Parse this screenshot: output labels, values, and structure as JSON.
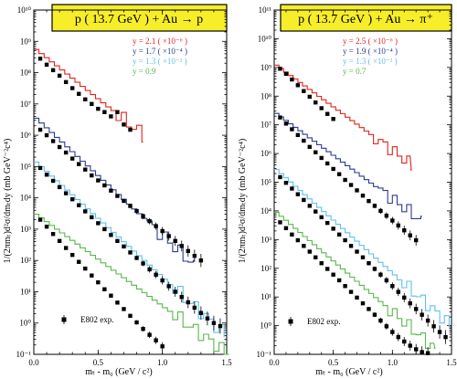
{
  "chart_data": [
    {
      "type": "scatter",
      "title": "p ( 13.7 GeV ) + Au → p",
      "xlabel": "mₜ - m₀ (GeV / c²)",
      "ylabel": "1/(2πmₜ)d²σ/dmₜdy (mb GeV⁻²c⁴)",
      "xlim": [
        0.0,
        1.5
      ],
      "ylim": [
        0.1,
        10000000000
      ],
      "ylog": true,
      "xticks": [
        "0.0",
        "0.5",
        "1.0",
        "1.5"
      ],
      "yticks": [
        "10⁻¹",
        "10⁰",
        "10¹",
        "10²",
        "10³",
        "10⁴",
        "10⁵",
        "10⁶",
        "10⁷",
        "10⁸",
        "10⁹",
        "10¹⁰"
      ],
      "marker_legend": "E802 exp.",
      "series": [
        {
          "name": "y = 2.1 ( ×10⁻⁶ )",
          "color": "#e0241c",
          "x": [
            0.05,
            0.1,
            0.15,
            0.2,
            0.25,
            0.3,
            0.35,
            0.4,
            0.45,
            0.5,
            0.55,
            0.6,
            0.65,
            0.7,
            0.75
          ],
          "y": [
            280000000,
            180000000,
            120000000,
            80000000,
            50000000,
            32000000,
            21000000,
            14000000,
            10000000,
            7000000,
            5500000,
            4000000,
            5500000,
            2200000,
            1500000
          ],
          "model_x": [
            0.0,
            0.85
          ],
          "model_y": [
            550000000,
            900000
          ]
        },
        {
          "name": "y = 1.7 ( ×10⁻⁴ )",
          "color": "#2a3b8f",
          "x": [
            0.05,
            0.1,
            0.15,
            0.2,
            0.25,
            0.3,
            0.35,
            0.4,
            0.45,
            0.5,
            0.55,
            0.6,
            0.65,
            0.7,
            0.75,
            0.8,
            0.85,
            0.9,
            0.95,
            1.0,
            1.05,
            1.1,
            1.15,
            1.2,
            1.25,
            1.3
          ],
          "y": [
            1500000,
            1000000,
            650000,
            420000,
            280000,
            180000,
            120000,
            80000,
            52000,
            36000,
            25000,
            17000,
            11500,
            8000,
            5500,
            3800,
            2600,
            1800,
            1250,
            870,
            600,
            420,
            290,
            200,
            140,
            100
          ],
          "model_x": [
            0.0,
            1.25
          ],
          "model_y": [
            3500000,
            60
          ]
        },
        {
          "name": "y = 1.3 ( ×10⁻² )",
          "color": "#5fc0ea",
          "x": [
            0.05,
            0.1,
            0.15,
            0.2,
            0.25,
            0.3,
            0.35,
            0.4,
            0.45,
            0.5,
            0.55,
            0.6,
            0.65,
            0.7,
            0.75,
            0.8,
            0.85,
            0.9,
            0.95,
            1.0,
            1.05,
            1.1,
            1.15,
            1.2,
            1.25,
            1.3,
            1.35,
            1.4,
            1.45
          ],
          "y": [
            90000,
            55000,
            35000,
            22000,
            14000,
            9000,
            5800,
            3700,
            2400,
            1550,
            1000,
            650,
            420,
            280,
            180,
            120,
            80,
            52,
            35,
            23,
            15,
            10,
            6.8,
            4.6,
            3.1,
            2.1,
            1.4,
            1.0,
            0.8
          ],
          "model_x": [
            0.0,
            1.48
          ],
          "model_y": [
            140000,
            0.4
          ]
        },
        {
          "name": "y = 0.9",
          "color": "#58b84a",
          "x": [
            0.05,
            0.1,
            0.15,
            0.2,
            0.25,
            0.3,
            0.35,
            0.4,
            0.45,
            0.5,
            0.55,
            0.6,
            0.65,
            0.7,
            0.75,
            0.8,
            0.85,
            0.9,
            0.95,
            1.0
          ],
          "y": [
            2000,
            1200,
            700,
            420,
            250,
            150,
            90,
            55,
            33,
            20,
            12,
            7.5,
            4.5,
            2.8,
            1.7,
            1.05,
            0.65,
            0.42,
            0.28,
            0.18
          ],
          "model_x": [
            0.0,
            1.5
          ],
          "model_y": [
            3000,
            0.1
          ]
        }
      ]
    },
    {
      "type": "scatter",
      "title": "p ( 13.7 GeV ) + Au → π⁺",
      "xlabel": "mₜ - m₀ (GeV / c²)",
      "ylabel": "1/(2πmₜ)d²σ/dmₜdy (mb GeV⁻²c⁴)",
      "xlim": [
        0.0,
        1.5
      ],
      "ylim": [
        0.1,
        100000000000
      ],
      "ylog": true,
      "xticks": [
        "0.0",
        "0.5",
        "1.0",
        "1.5"
      ],
      "yticks": [
        "10⁻¹",
        "10⁰",
        "10¹",
        "10²",
        "10³",
        "10⁴",
        "10⁵",
        "10⁶",
        "10⁷",
        "10⁸",
        "10⁹",
        "10¹⁰",
        "10¹¹"
      ],
      "marker_legend": "E802 exp.",
      "series": [
        {
          "name": "y = 2.5 ( ×10⁻⁶ )",
          "color": "#e0241c",
          "x": [
            0.05,
            0.1,
            0.15,
            0.2,
            0.25,
            0.3,
            0.35,
            0.4,
            0.45,
            0.5
          ],
          "y": [
            900000000,
            600000000,
            380000000,
            240000000,
            150000000,
            95000000,
            60000000,
            38000000,
            24000000,
            16000000
          ],
          "model_x": [
            0.0,
            1.15
          ],
          "model_y": [
            1200000000,
            400000
          ]
        },
        {
          "name": "y = 1.9 ( ×10⁻⁴ )",
          "color": "#2a3b8f",
          "x": [
            0.05,
            0.1,
            0.15,
            0.2,
            0.25,
            0.3,
            0.35,
            0.4,
            0.45,
            0.5,
            0.55,
            0.6,
            0.65,
            0.7,
            0.75,
            0.8,
            0.85,
            0.9,
            0.95,
            1.0,
            1.05,
            1.1,
            1.15,
            1.2
          ],
          "y": [
            18000000,
            11000000,
            7000000,
            4400000,
            2800000,
            1700000,
            1100000,
            700000,
            450000,
            290000,
            190000,
            120000,
            80000,
            52000,
            34000,
            22000,
            15000,
            10000,
            6800,
            4600,
            3100,
            2100,
            1400,
            950
          ],
          "model_x": [
            0.0,
            1.25
          ],
          "model_y": [
            25000000,
            4000
          ]
        },
        {
          "name": "y = 1.3 ( ×10⁻² )",
          "color": "#5fc0ea",
          "x": [
            0.05,
            0.1,
            0.15,
            0.2,
            0.25,
            0.3,
            0.35,
            0.4,
            0.45,
            0.5,
            0.55,
            0.6,
            0.65,
            0.7,
            0.75,
            0.8,
            0.85,
            0.9,
            0.95,
            1.0,
            1.05,
            1.1,
            1.15,
            1.2,
            1.25,
            1.3,
            1.35,
            1.4,
            1.45
          ],
          "y": [
            150000,
            95000,
            60000,
            38000,
            24000,
            15000,
            9500,
            6000,
            3800,
            2400,
            1500,
            950,
            600,
            380,
            240,
            150,
            95,
            60,
            38,
            24,
            15,
            9.5,
            6,
            3.8,
            2.4,
            1.5,
            0.95,
            0.6,
            0.4
          ],
          "model_x": [
            0.0,
            1.48
          ],
          "model_y": [
            280000,
            1.0
          ]
        },
        {
          "name": "y = 0.7",
          "color": "#58b84a",
          "x": [
            0.05,
            0.1,
            0.15,
            0.2,
            0.25,
            0.3,
            0.35,
            0.4,
            0.45,
            0.5,
            0.55,
            0.6,
            0.65,
            0.7,
            0.75,
            0.8,
            0.85,
            0.9,
            0.95,
            1.0,
            1.05,
            1.1,
            1.15,
            1.2,
            1.25,
            1.3
          ],
          "y": [
            4000,
            2500,
            1500,
            950,
            600,
            380,
            240,
            150,
            95,
            60,
            38,
            24,
            15,
            9.5,
            6,
            3.8,
            2.4,
            1.5,
            0.95,
            0.6,
            0.4,
            0.28,
            0.2,
            0.15,
            0.12,
            0.11
          ],
          "model_x": [
            0.0,
            1.35
          ],
          "model_y": [
            9000,
            0.15
          ]
        }
      ]
    }
  ]
}
